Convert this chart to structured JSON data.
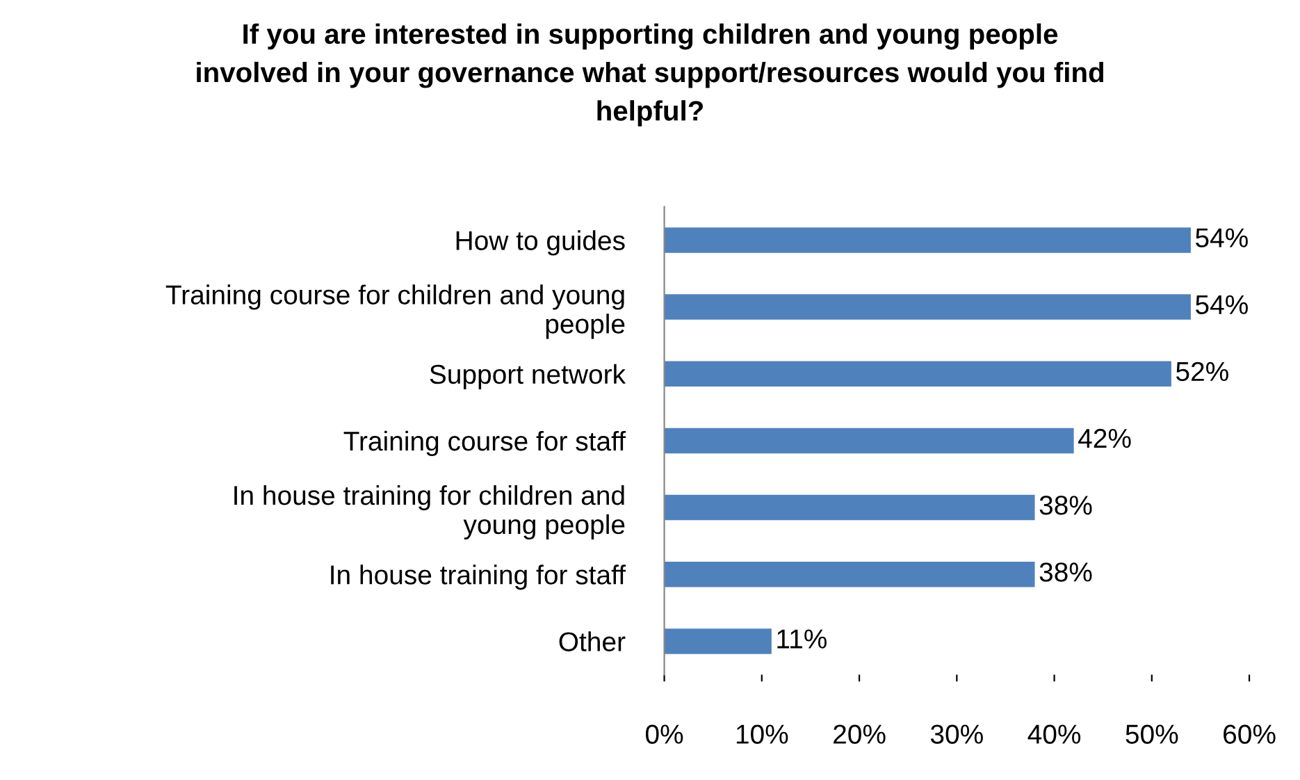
{
  "chart_data": {
    "type": "bar",
    "orientation": "horizontal",
    "title": "If you are interested in supporting children and young people\ninvolved in your governance what support/resources would you find\nhelpful?",
    "categories": [
      "How to guides",
      "Training course for children and young\npeople",
      "Support network",
      "Training course for staff",
      "In house training for children and\nyoung people",
      "In house training for staff",
      "Other"
    ],
    "values": [
      54,
      54,
      52,
      42,
      38,
      38,
      11
    ],
    "value_labels": [
      "54%",
      "54%",
      "52%",
      "42%",
      "38%",
      "38%",
      "11%"
    ],
    "color": "#4f81bd",
    "xlim": [
      0,
      60
    ],
    "xticks": [
      {
        "value": 0,
        "label": "0%"
      },
      {
        "value": 10,
        "label": "10%"
      },
      {
        "value": 20,
        "label": "20%"
      },
      {
        "value": 30,
        "label": "30%"
      },
      {
        "value": 40,
        "label": "40%"
      },
      {
        "value": 50,
        "label": "50%"
      },
      {
        "value": 60,
        "label": "60%"
      }
    ],
    "grid": false,
    "legend": false
  }
}
